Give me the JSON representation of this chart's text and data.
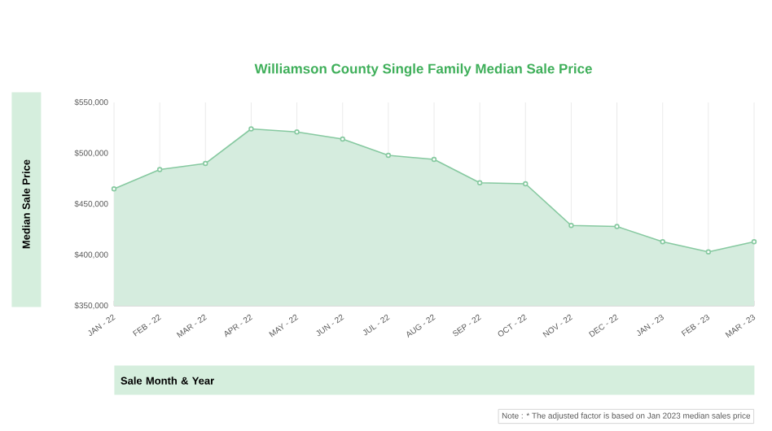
{
  "chart_data": {
    "type": "area",
    "title": "Williamson County Single Family Median Sale Price",
    "xlabel": "Sale Month & Year",
    "ylabel": "Median Sale Price",
    "categories": [
      "JAN - 22",
      "FEB - 22",
      "MAR - 22",
      "APR - 22",
      "MAY - 22",
      "JUN - 22",
      "JUL - 22",
      "AUG - 22",
      "SEP - 22",
      "OCT - 22",
      "NOV - 22",
      "DEC - 22",
      "JAN - 23",
      "FEB - 23",
      "MAR - 23"
    ],
    "series": [
      {
        "color": "#86c9a0",
        "values": [
          465000,
          484000,
          490000,
          524000,
          521000,
          514000,
          498000,
          494000,
          471000,
          470000,
          429000,
          428000,
          413000,
          403000,
          413000
        ]
      }
    ],
    "ylim": [
      350000,
      550000
    ],
    "yticks": [
      {
        "value": 350000,
        "label": "$350,000"
      },
      {
        "value": 400000,
        "label": "$400,000"
      },
      {
        "value": 450000,
        "label": "$450,000"
      },
      {
        "value": 500000,
        "label": "$500,000"
      },
      {
        "value": 550000,
        "label": "$550,000"
      }
    ],
    "grid": "x",
    "marker": "circle",
    "annotations": [
      "Note : * The adjusted factor is based on Jan 2023 median sales price"
    ]
  }
}
